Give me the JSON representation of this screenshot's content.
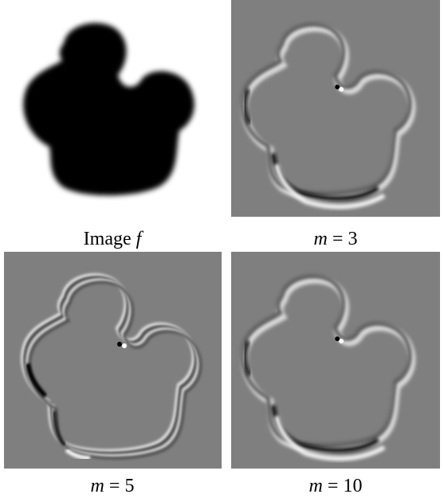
{
  "panels": [
    {
      "caption_text": "Image",
      "caption_math": "f",
      "caption_eq": "",
      "caption_num": ""
    },
    {
      "caption_text": "",
      "caption_math": "m",
      "caption_eq": "=",
      "caption_num": "3"
    },
    {
      "caption_text": "",
      "caption_math": "m",
      "caption_eq": "=",
      "caption_num": "5"
    },
    {
      "caption_text": "",
      "caption_math": "m",
      "caption_eq": "=",
      "caption_num": "10"
    }
  ],
  "colors": {
    "shape": "#000000",
    "gray_background": "#7f7f7f",
    "bright_edge": "#f2f2f2",
    "dark_edge": "#141414"
  }
}
